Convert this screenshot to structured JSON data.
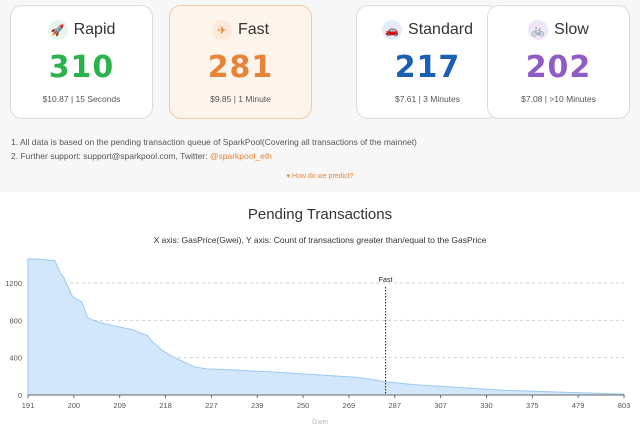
{
  "cards": [
    {
      "name": "Rapid",
      "value": "310",
      "meta": "$10.87 | 15 Seconds",
      "icon": "rocket-icon",
      "glyph": "🚀",
      "color": "#2bb24c",
      "icon_bg": "#e6f6ea"
    },
    {
      "name": "Fast",
      "value": "281",
      "meta": "$9.85 | 1 Minute",
      "icon": "airplane-icon",
      "glyph": "✈",
      "color": "#e8833a",
      "icon_bg": "#fde9d9"
    },
    {
      "name": "Standard",
      "value": "217",
      "meta": "$7.61 | 3 Minutes",
      "icon": "car-icon",
      "glyph": "🚗",
      "color": "#1a5fb4",
      "icon_bg": "#e3ecf8"
    },
    {
      "name": "Slow",
      "value": "202",
      "meta": "$7.08 | >10 Minutes",
      "icon": "bicycle-icon",
      "glyph": "🚲",
      "color": "#8e5cc7",
      "icon_bg": "#efe6f8"
    }
  ],
  "notes": {
    "line1": "1. All data is based on the pending transaction queue of SparkPool(Covering all transactions of the mainnet)",
    "line2_prefix": "2. Further support: support@sparkpool.com, Twitter: ",
    "twitter": "@sparkpool_eth"
  },
  "predict_link": "How do we predict?",
  "chart_data": {
    "type": "area",
    "title": "Pending Transactions",
    "subtitle": "X axis: GasPrice(Gwei), Y axis: Count of transactions greater than/equal to the GasPrice",
    "xlabel": "Gwei",
    "ylabel": "",
    "x_tick_labels": [
      "191",
      "200",
      "209",
      "218",
      "227",
      "239",
      "250",
      "269",
      "287",
      "307",
      "330",
      "375",
      "479",
      "803"
    ],
    "y_ticks": [
      0,
      400,
      800,
      1200
    ],
    "ylim": [
      0,
      1500
    ],
    "grid": true,
    "marker": {
      "label": "Fast",
      "x": "281"
    },
    "color": "#d2e7fb",
    "line_color": "#9ccaf2",
    "series": [
      {
        "x_positions": [
          0,
          0.02,
          0.045,
          0.055,
          0.06,
          0.075,
          0.09,
          0.1,
          0.11,
          0.115,
          0.125,
          0.145,
          0.16,
          0.175,
          0.19,
          0.2,
          0.21,
          0.215,
          0.225,
          0.24,
          0.26,
          0.28,
          0.3,
          0.34,
          0.4,
          0.45,
          0.5,
          0.55,
          0.575,
          0.6,
          0.65,
          0.7,
          0.75,
          0.8,
          0.85,
          0.9,
          0.95,
          1.0
        ],
        "values": [
          1460,
          1455,
          1440,
          1300,
          1260,
          1050,
          1000,
          830,
          800,
          790,
          770,
          740,
          720,
          700,
          660,
          640,
          560,
          540,
          480,
          420,
          360,
          300,
          280,
          270,
          250,
          230,
          210,
          190,
          170,
          140,
          110,
          90,
          70,
          50,
          40,
          30,
          20,
          10
        ]
      }
    ]
  }
}
